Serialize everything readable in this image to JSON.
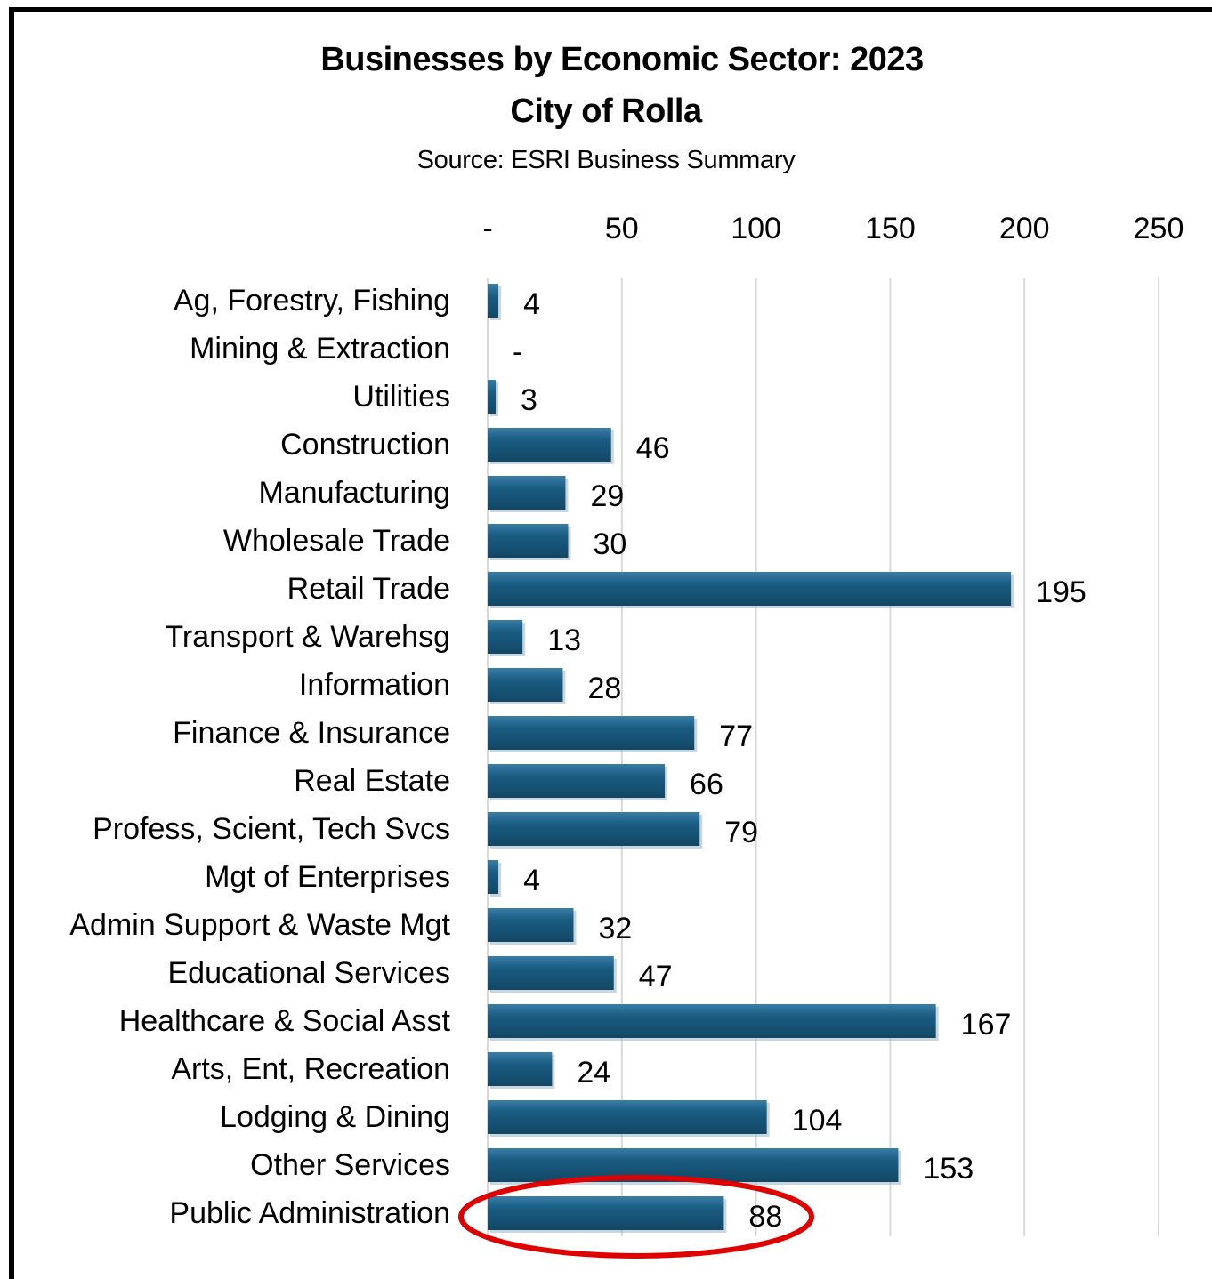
{
  "chart_data": {
    "type": "bar",
    "orientation": "horizontal",
    "title": "Businesses by Economic Sector: 2023",
    "subtitle_line1": "City of Rolla",
    "source": "Source:  ESRI Business Summary",
    "xlim": [
      0,
      250
    ],
    "x_ticks": [
      0,
      50,
      100,
      150,
      200,
      250
    ],
    "x_tick_labels": [
      "-",
      "50",
      "100",
      "150",
      "200",
      "250"
    ],
    "x_axis_position": "top",
    "grid": "vertical",
    "categories": [
      "Ag, Forestry, Fishing",
      "Mining & Extraction",
      "Utilities",
      "Construction",
      "Manufacturing",
      "Wholesale Trade",
      "Retail Trade",
      "Transport & Warehsg",
      "Information",
      "Finance & Insurance",
      "Real Estate",
      "Profess, Scient, Tech Svcs",
      "Mgt of Enterprises",
      "Admin Support & Waste Mgt",
      "Educational Services",
      "Healthcare & Social Asst",
      "Arts, Ent, Recreation",
      "Lodging & Dining",
      "Other Services",
      "Public Administration"
    ],
    "values": [
      4,
      0,
      3,
      46,
      29,
      30,
      195,
      13,
      28,
      77,
      66,
      79,
      4,
      32,
      47,
      167,
      24,
      104,
      153,
      88
    ],
    "value_labels": [
      "4",
      "-",
      "3",
      "46",
      "29",
      "30",
      "195",
      "13",
      "28",
      "77",
      "66",
      "79",
      "4",
      "32",
      "47",
      "167",
      "24",
      "104",
      "153",
      "88"
    ],
    "bar_color": "#1a5c82",
    "grid_color": "#d9d9d9",
    "highlight": {
      "category": "Public Administration",
      "shape": "ellipse",
      "color": "#e00000"
    }
  }
}
